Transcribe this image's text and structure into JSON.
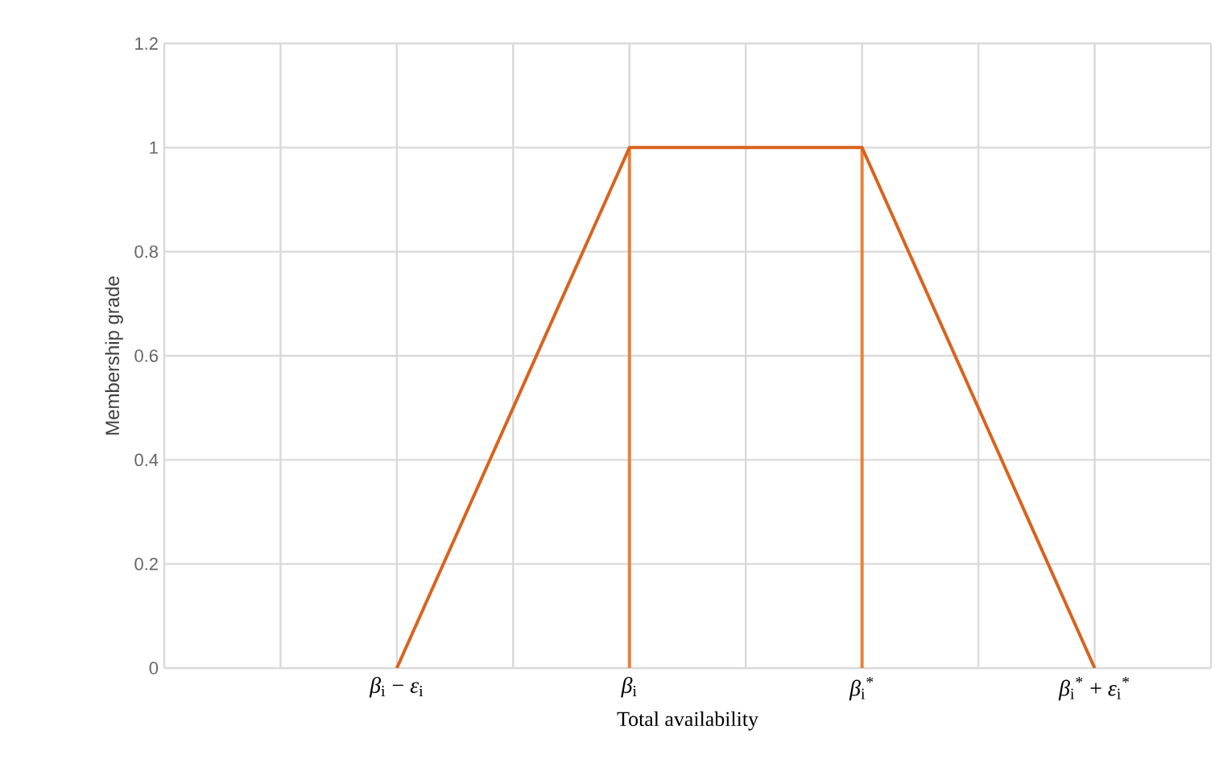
{
  "chart_data": {
    "type": "line",
    "xlabel": "Total availability",
    "ylabel": "Membership grade",
    "categories": [
      null,
      null,
      "*β*$_{i}$ − *ε*$_{i}$",
      null,
      "*β*$_{i}$",
      null,
      "*β*$_{i}$$^{*}$",
      null,
      "*β*$_{i}$$^{*}$ + *ε*$_{i}$$^{*}$",
      null
    ],
    "ylim": [
      0,
      1.2
    ],
    "yticks": [
      0,
      0.2,
      0.4,
      0.6,
      0.8,
      1,
      1.2
    ],
    "grid": true,
    "series": [
      {
        "type": "bar",
        "color": "#e8823a",
        "values": [
          null,
          null,
          null,
          null,
          1,
          null,
          1,
          null,
          null,
          null
        ]
      },
      {
        "color": "#d9631e",
        "values": [
          null,
          null,
          0,
          0.5,
          1,
          1,
          1,
          0.5,
          0,
          null
        ]
      }
    ]
  }
}
